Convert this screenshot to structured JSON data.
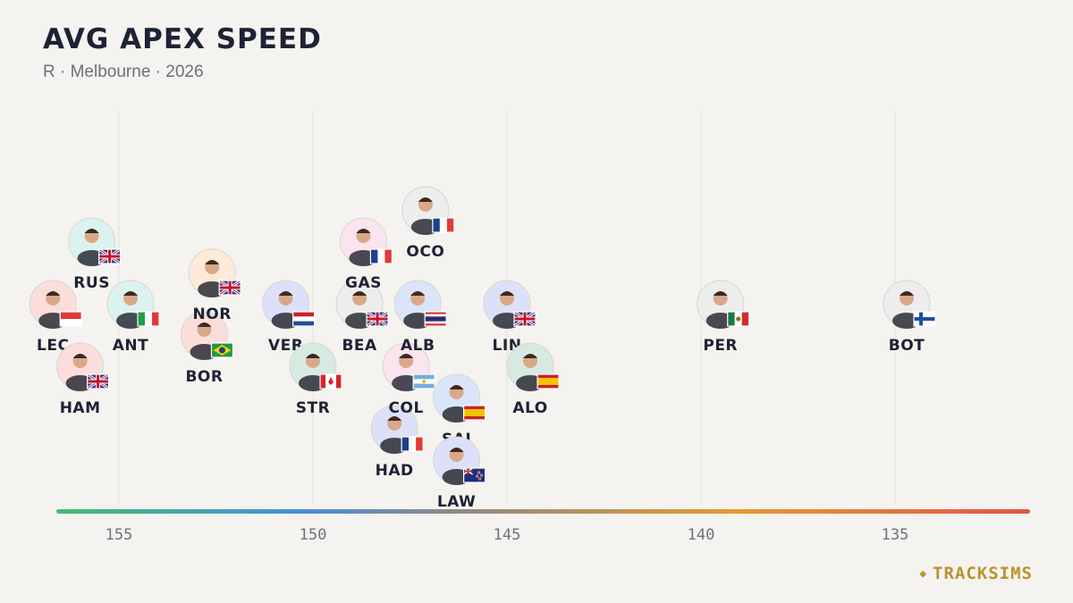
{
  "chart_data": {
    "type": "scatter",
    "title": "AVG APEX SPEED",
    "subtitle": "R · Melbourne · 2026",
    "xlabel": "",
    "ylabel": "",
    "xlim": [
      157,
      132
    ],
    "x_ticks": [
      155,
      150,
      145,
      140,
      135
    ],
    "x_tick_labels": [
      "155",
      "150",
      "145",
      "140",
      "135"
    ],
    "grid": "vertical",
    "colorbar": [
      "#3fbf6f",
      "#4a8fdc",
      "#8a8a8a",
      "#e89a2e",
      "#e4534a"
    ],
    "points": [
      {
        "driver": "LEC",
        "value": 156.7,
        "team_color": "#e8453c",
        "flag": "monaco"
      },
      {
        "driver": "HAM",
        "value": 156.0,
        "team_color": "#e8453c",
        "flag": "gb"
      },
      {
        "driver": "RUS",
        "value": 155.7,
        "team_color": "#2fbf9f",
        "flag": "gb"
      },
      {
        "driver": "ANT",
        "value": 154.7,
        "team_color": "#2fbf9f",
        "flag": "italy"
      },
      {
        "driver": "BOR",
        "value": 152.8,
        "team_color": "#e8453c",
        "flag": "brazil"
      },
      {
        "driver": "NOR",
        "value": 152.6,
        "team_color": "#f28c28",
        "flag": "gb"
      },
      {
        "driver": "VER",
        "value": 150.7,
        "team_color": "#3b5bdb",
        "flag": "netherlands"
      },
      {
        "driver": "STR",
        "value": 150.0,
        "team_color": "#1f8a5c",
        "flag": "canada"
      },
      {
        "driver": "BEA",
        "value": 148.8,
        "team_color": "#9a9a9a",
        "flag": "gb"
      },
      {
        "driver": "GAS",
        "value": 148.7,
        "team_color": "#e86aa0",
        "flag": "france"
      },
      {
        "driver": "HAD",
        "value": 147.9,
        "team_color": "#3b5bdb",
        "flag": "france"
      },
      {
        "driver": "COL",
        "value": 147.6,
        "team_color": "#e86aa0",
        "flag": "argentina"
      },
      {
        "driver": "ALB",
        "value": 147.3,
        "team_color": "#2f6fdb",
        "flag": "thailand"
      },
      {
        "driver": "OCO",
        "value": 147.1,
        "team_color": "#9a9a9a",
        "flag": "france"
      },
      {
        "driver": "SAI",
        "value": 146.3,
        "team_color": "#2f6fdb",
        "flag": "spain"
      },
      {
        "driver": "LAW",
        "value": 146.3,
        "team_color": "#3b5bdb",
        "flag": "newzealand"
      },
      {
        "driver": "LIN",
        "value": 145.0,
        "team_color": "#3b5bdb",
        "flag": "gb"
      },
      {
        "driver": "ALO",
        "value": 144.4,
        "team_color": "#1f8a5c",
        "flag": "spain"
      },
      {
        "driver": "PER",
        "value": 139.5,
        "team_color": "#9a9a9a",
        "flag": "mexico"
      },
      {
        "driver": "BOT",
        "value": 134.7,
        "team_color": "#9a9a9a",
        "flag": "finland"
      }
    ]
  },
  "brand": {
    "name": "TRACKSIMS",
    "icon": "diamond-icon"
  }
}
